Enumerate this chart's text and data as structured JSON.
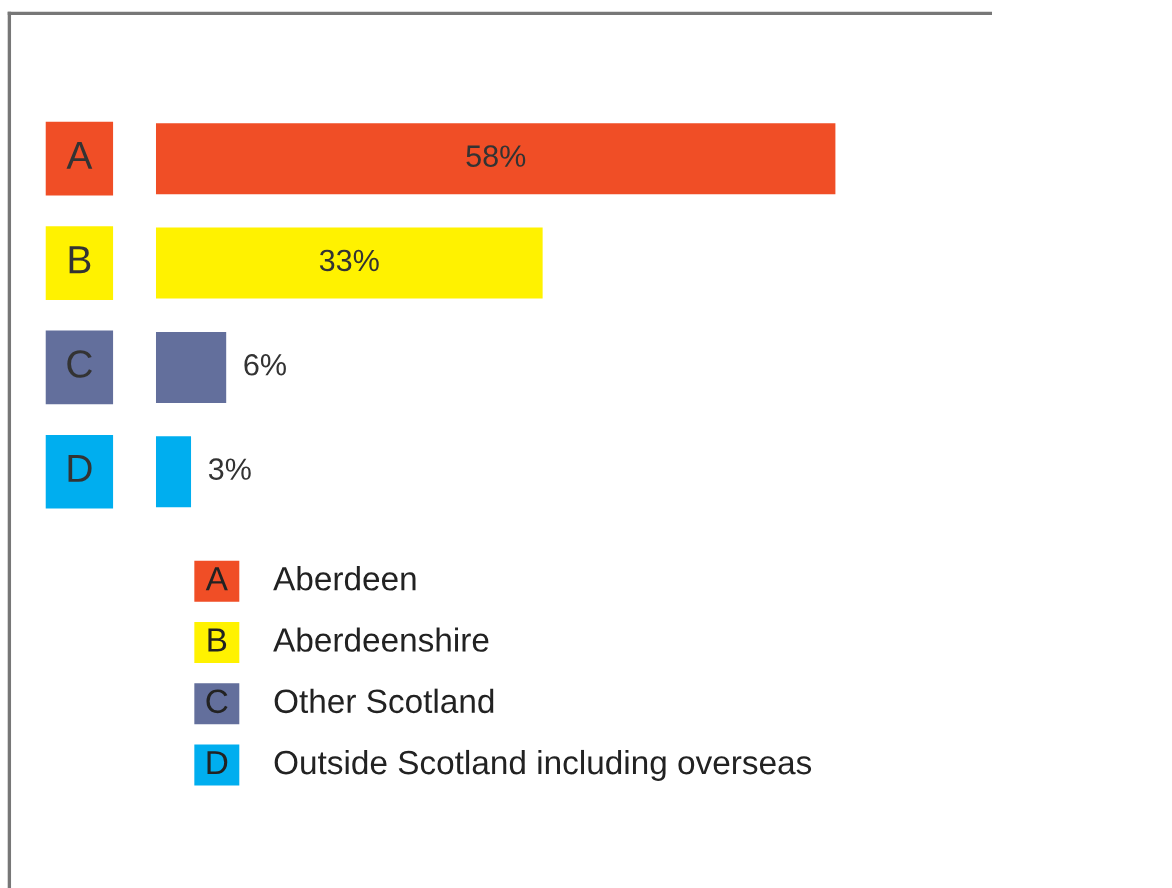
{
  "chart_data": {
    "type": "bar",
    "orientation": "horizontal",
    "categories": [
      "A",
      "B",
      "C",
      "D"
    ],
    "values": [
      58,
      33,
      6,
      3
    ],
    "value_labels": [
      "58%",
      "33%",
      "6%",
      "3%"
    ],
    "colors": [
      "#f04e26",
      "#fff200",
      "#636f9c",
      "#00aeef"
    ],
    "annotations": [
      "Aberdeen",
      "Aberdeenshire",
      "Other Scotland",
      "Outside Scotland including overseas"
    ]
  }
}
